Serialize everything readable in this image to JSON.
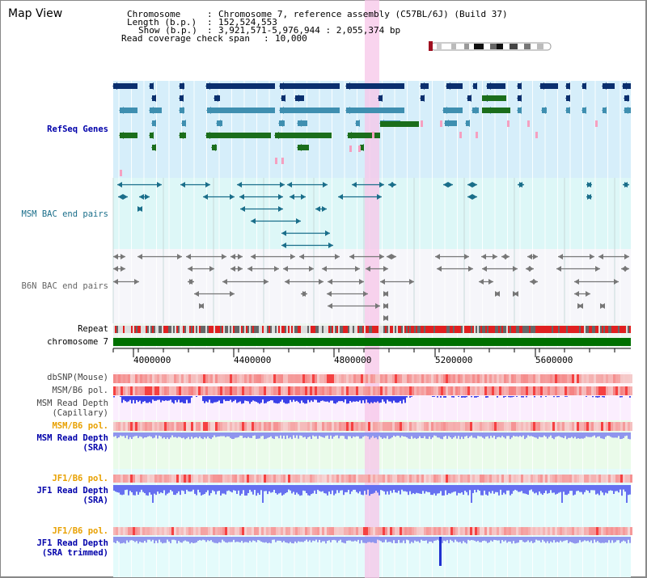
{
  "header": {
    "title": "Map View",
    "chromosome_key": "Chromosome",
    "chromosome_value": "Chromosome 7, reference assembly (C57BL/6J) (Build 37)",
    "length_key": "Length (b.p.)",
    "length_value": "152,524,553",
    "show_key": "Show (b.p.)",
    "show_value": "3,921,571-5,976,944 : 2,055,374 bp",
    "coverage_key": "Read coverage check span",
    "coverage_value": "10,000"
  },
  "tracks": {
    "refseq": "RefSeq Genes",
    "msm_bac": "MSM BAC end pairs",
    "b6n_bac": "B6N BAC end pairs",
    "repeat": "Repeat",
    "chromosome": "chromosome 7",
    "dbsnp": "dbSNP(Mouse)",
    "msm_b6_pol_1": "MSM/B6 pol.",
    "msm_read_depth_cap_1": "MSM Read Depth",
    "msm_read_depth_cap_2": "(Capillary)",
    "msm_b6_pol_2": "MSM/B6 pol.",
    "msm_read_depth_sra_1": "MSM Read Depth",
    "msm_read_depth_sra_2": "(SRA)",
    "jf1_b6_pol_1": "JF1/B6 pol.",
    "jf1_read_depth_1": "JF1 Read Depth",
    "jf1_read_depth_2": "(SRA)",
    "jf1_b6_pol_2": "JF1/B6 pol.",
    "jf1_trim_1": "JF1 Read Depth",
    "jf1_trim_2": "(SRA trimmed)"
  },
  "axis": {
    "ticks": [
      "4000000",
      "4400000",
      "4800000",
      "5200000",
      "5600000"
    ]
  },
  "colors": {
    "refseq_bg": "#d6eefa",
    "msm_bg": "#ddf7f7",
    "b6n_bg": "#f6f6fa",
    "gene_dark": "#0b2f6e",
    "gene_mid": "#3f8fb0",
    "gene_green": "#1b6e1b",
    "pink": "#f5a0c0",
    "msm_label": "#1a6e8a",
    "b6n_label": "#666666",
    "highlight": "#f7c6e8",
    "orange": "#e8a000",
    "blue_label": "#0000aa",
    "chrom_bar": "#007000",
    "depth": "#4455ee"
  }
}
